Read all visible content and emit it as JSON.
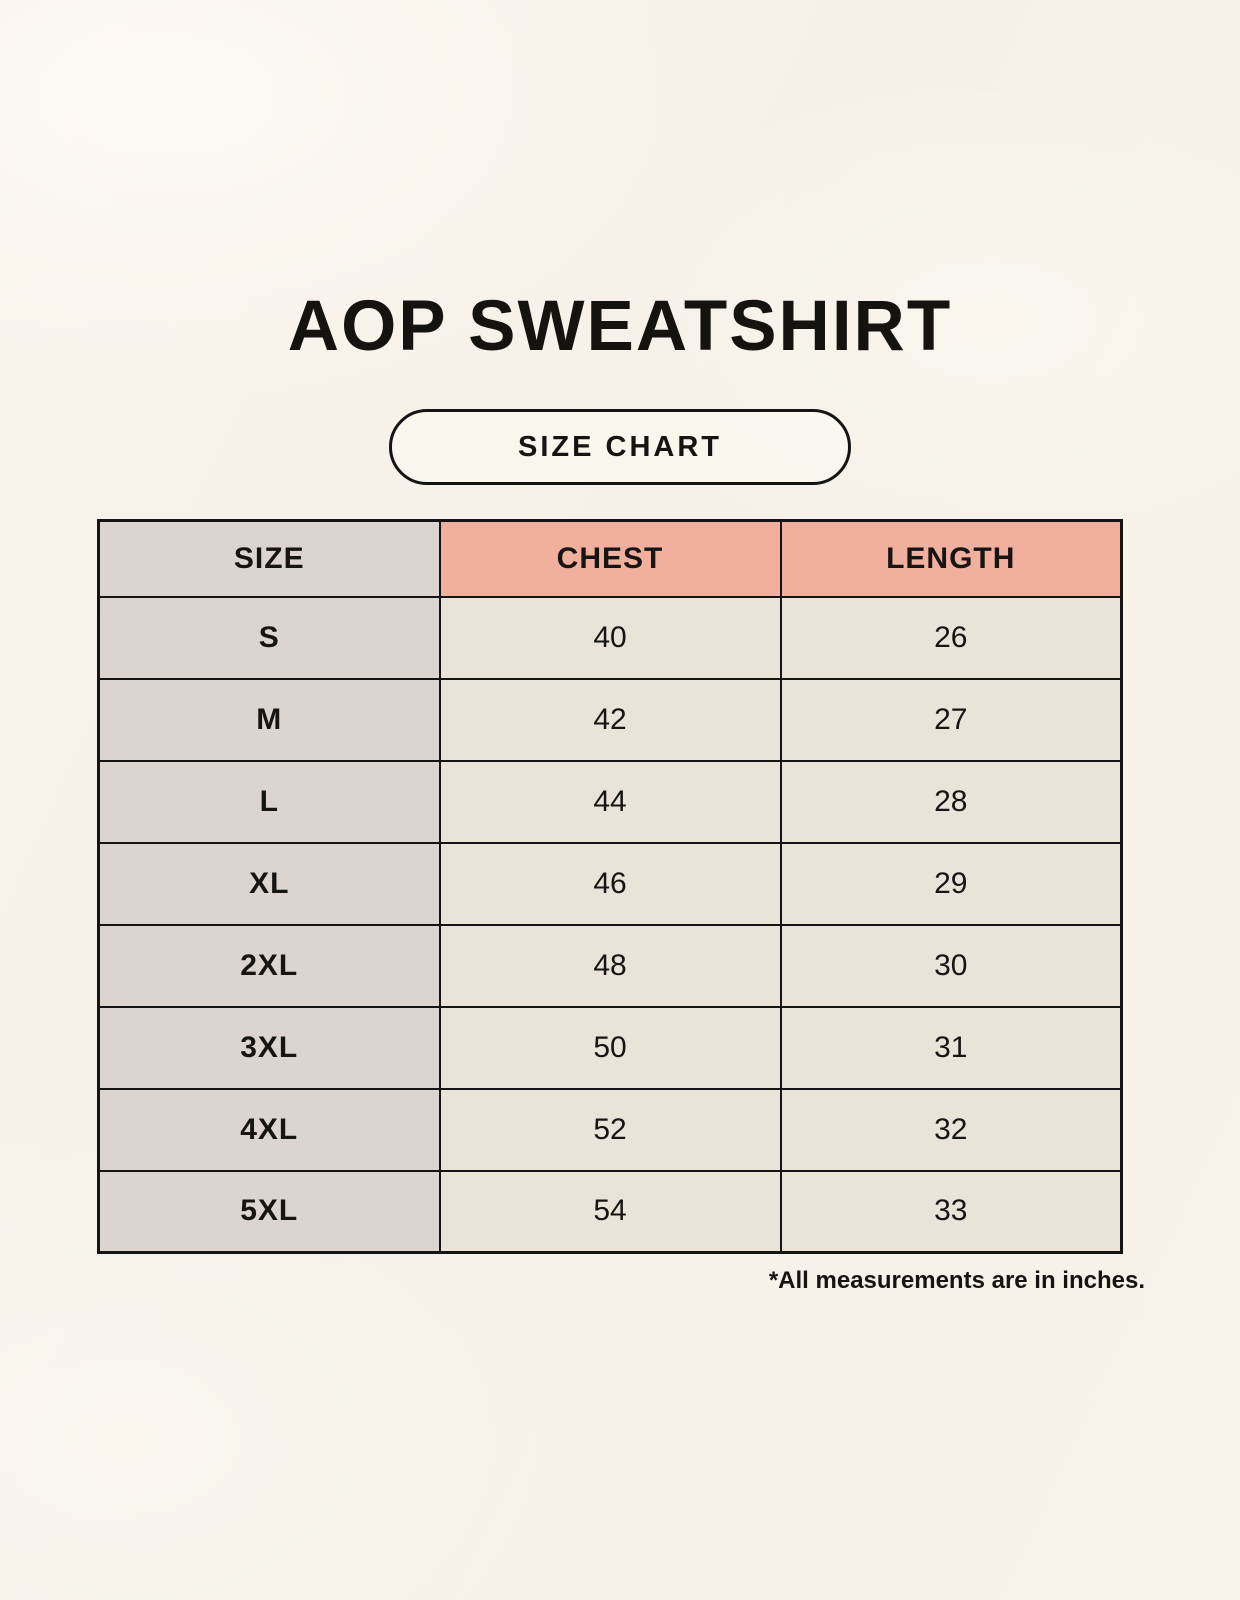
{
  "header": {
    "title": "AOP SWEATSHIRT",
    "badge_label": "SIZE CHART"
  },
  "chart_data": {
    "type": "table",
    "title": "AOP SWEATSHIRT",
    "subtitle": "SIZE CHART",
    "columns": [
      "SIZE",
      "CHEST",
      "LENGTH"
    ],
    "rows": [
      [
        "S",
        40,
        26
      ],
      [
        "M",
        42,
        27
      ],
      [
        "L",
        44,
        28
      ],
      [
        "XL",
        46,
        29
      ],
      [
        "2XL",
        48,
        30
      ],
      [
        "3XL",
        50,
        31
      ],
      [
        "4XL",
        52,
        32
      ],
      [
        "5XL",
        54,
        33
      ]
    ],
    "note": "*All measurements are in inches.",
    "units": "inches"
  },
  "colors": {
    "page_bg": "#f5f1e8",
    "size_col_bg": "#dbd4d0",
    "measure_header_bg": "#f1af9d",
    "value_cell_bg": "#eae3d8",
    "line_color": "#141414",
    "text_color": "#161412"
  }
}
